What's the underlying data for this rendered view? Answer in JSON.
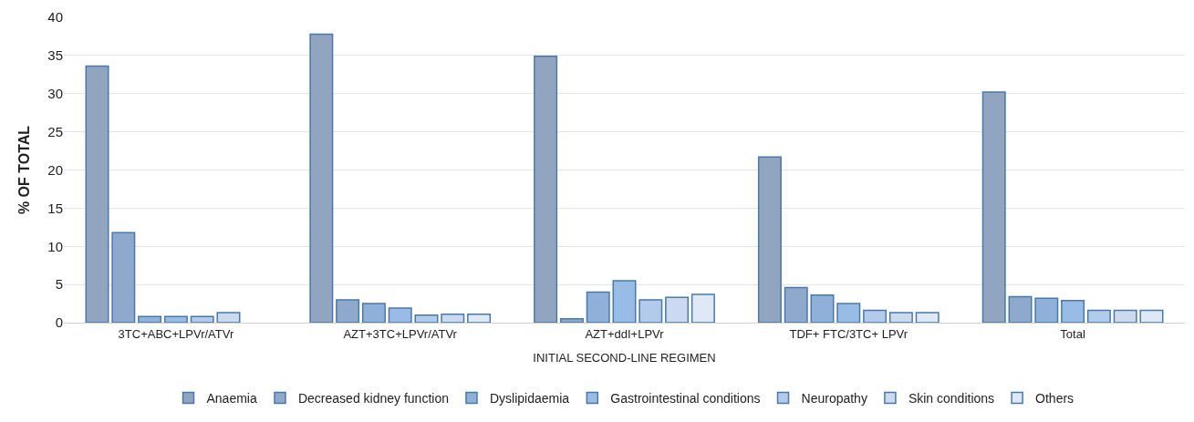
{
  "chart_data": {
    "type": "bar",
    "xlabel": "INITIAL SECOND-LINE REGIMEN",
    "ylabel": "% OF TOTAL",
    "categories": [
      "3TC+ABC+LPVr/ATVr",
      "AZT+3TC+LPVr/ATVr",
      "AZT+ddI+LPVr",
      "TDF+ FTC/3TC+ LPVr",
      "Total"
    ],
    "series": [
      {
        "name": "Anaemia",
        "color": "#91a4c0",
        "values": [
          33.6,
          37.8,
          34.9,
          21.7,
          30.2
        ]
      },
      {
        "name": "Decreased kidney function",
        "color": "#8fa9cc",
        "values": [
          11.8,
          3.0,
          0.5,
          4.6,
          3.4
        ]
      },
      {
        "name": "Dyslipidaemia",
        "color": "#8fb0d9",
        "values": [
          0.8,
          2.5,
          4.0,
          3.6,
          3.2
        ]
      },
      {
        "name": "Gastrointestinal conditions",
        "color": "#98bce6",
        "values": [
          0.8,
          1.9,
          5.5,
          2.5,
          2.9
        ]
      },
      {
        "name": "Neuropathy",
        "color": "#b2cbea",
        "values": [
          0.8,
          1.0,
          3.0,
          1.6,
          1.6
        ]
      },
      {
        "name": "Skin conditions",
        "color": "#cbdaef",
        "values": [
          1.3,
          1.1,
          3.3,
          1.3,
          1.6
        ]
      },
      {
        "name": "Others",
        "color": "#dfe8f5",
        "values": [
          null,
          1.1,
          3.7,
          1.3,
          1.6
        ]
      }
    ],
    "ylim": [
      0,
      40
    ],
    "yticks": [
      0,
      5,
      10,
      15,
      20,
      25,
      30,
      35,
      40
    ],
    "grid": "y",
    "legend": "bottom"
  }
}
